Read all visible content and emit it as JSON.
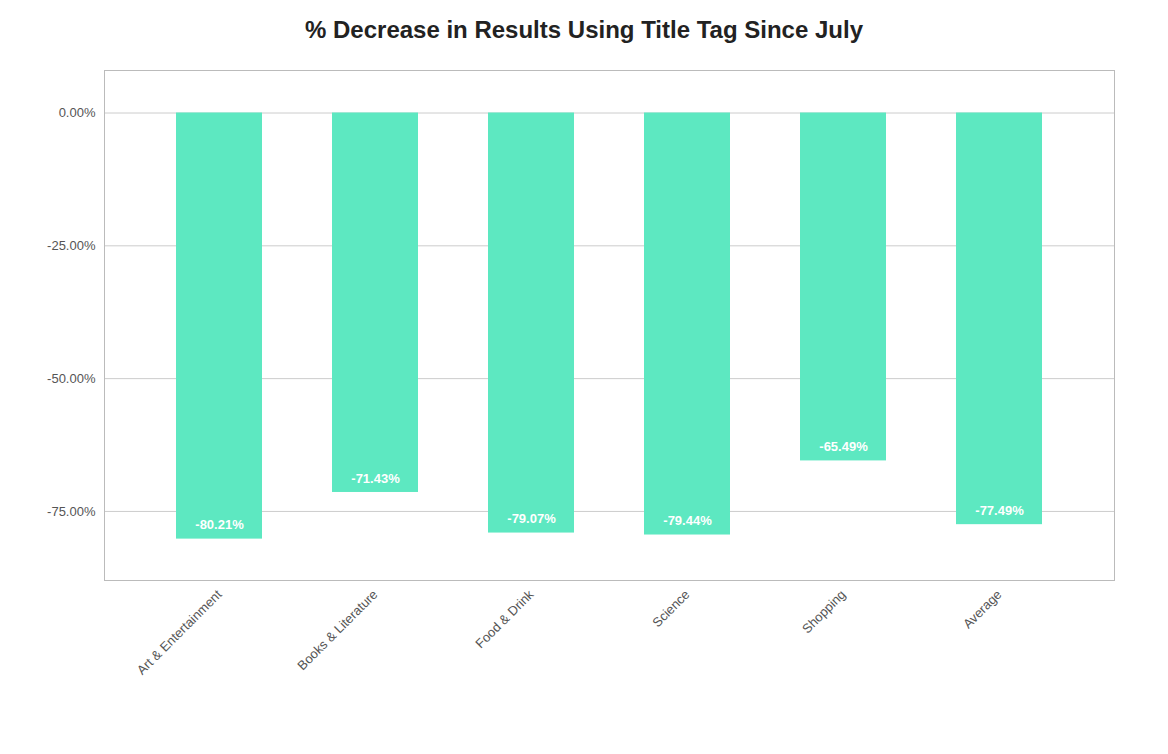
{
  "chart_data": {
    "type": "bar",
    "title": "% Decrease in Results Using Title Tag Since July",
    "categories": [
      "Art & Entertainment",
      "Books & Literature",
      "Food & Drink",
      "Science",
      "Shopping",
      "Average"
    ],
    "values": [
      -80.21,
      -71.43,
      -79.07,
      -79.44,
      -65.49,
      -77.49
    ],
    "value_labels": [
      "-80.21%",
      "-71.43%",
      "-79.07%",
      "-79.44%",
      "-65.49%",
      "-77.49%"
    ],
    "data_labels": true,
    "color": "#5de8c1",
    "ylim": [
      -88,
      8
    ],
    "yticks": [
      {
        "value": 0,
        "label": "0.00%"
      },
      {
        "value": -25,
        "label": "-25.00%"
      },
      {
        "value": -50,
        "label": "-50.00%"
      },
      {
        "value": -75,
        "label": "-75.00%"
      }
    ],
    "grid": true
  }
}
